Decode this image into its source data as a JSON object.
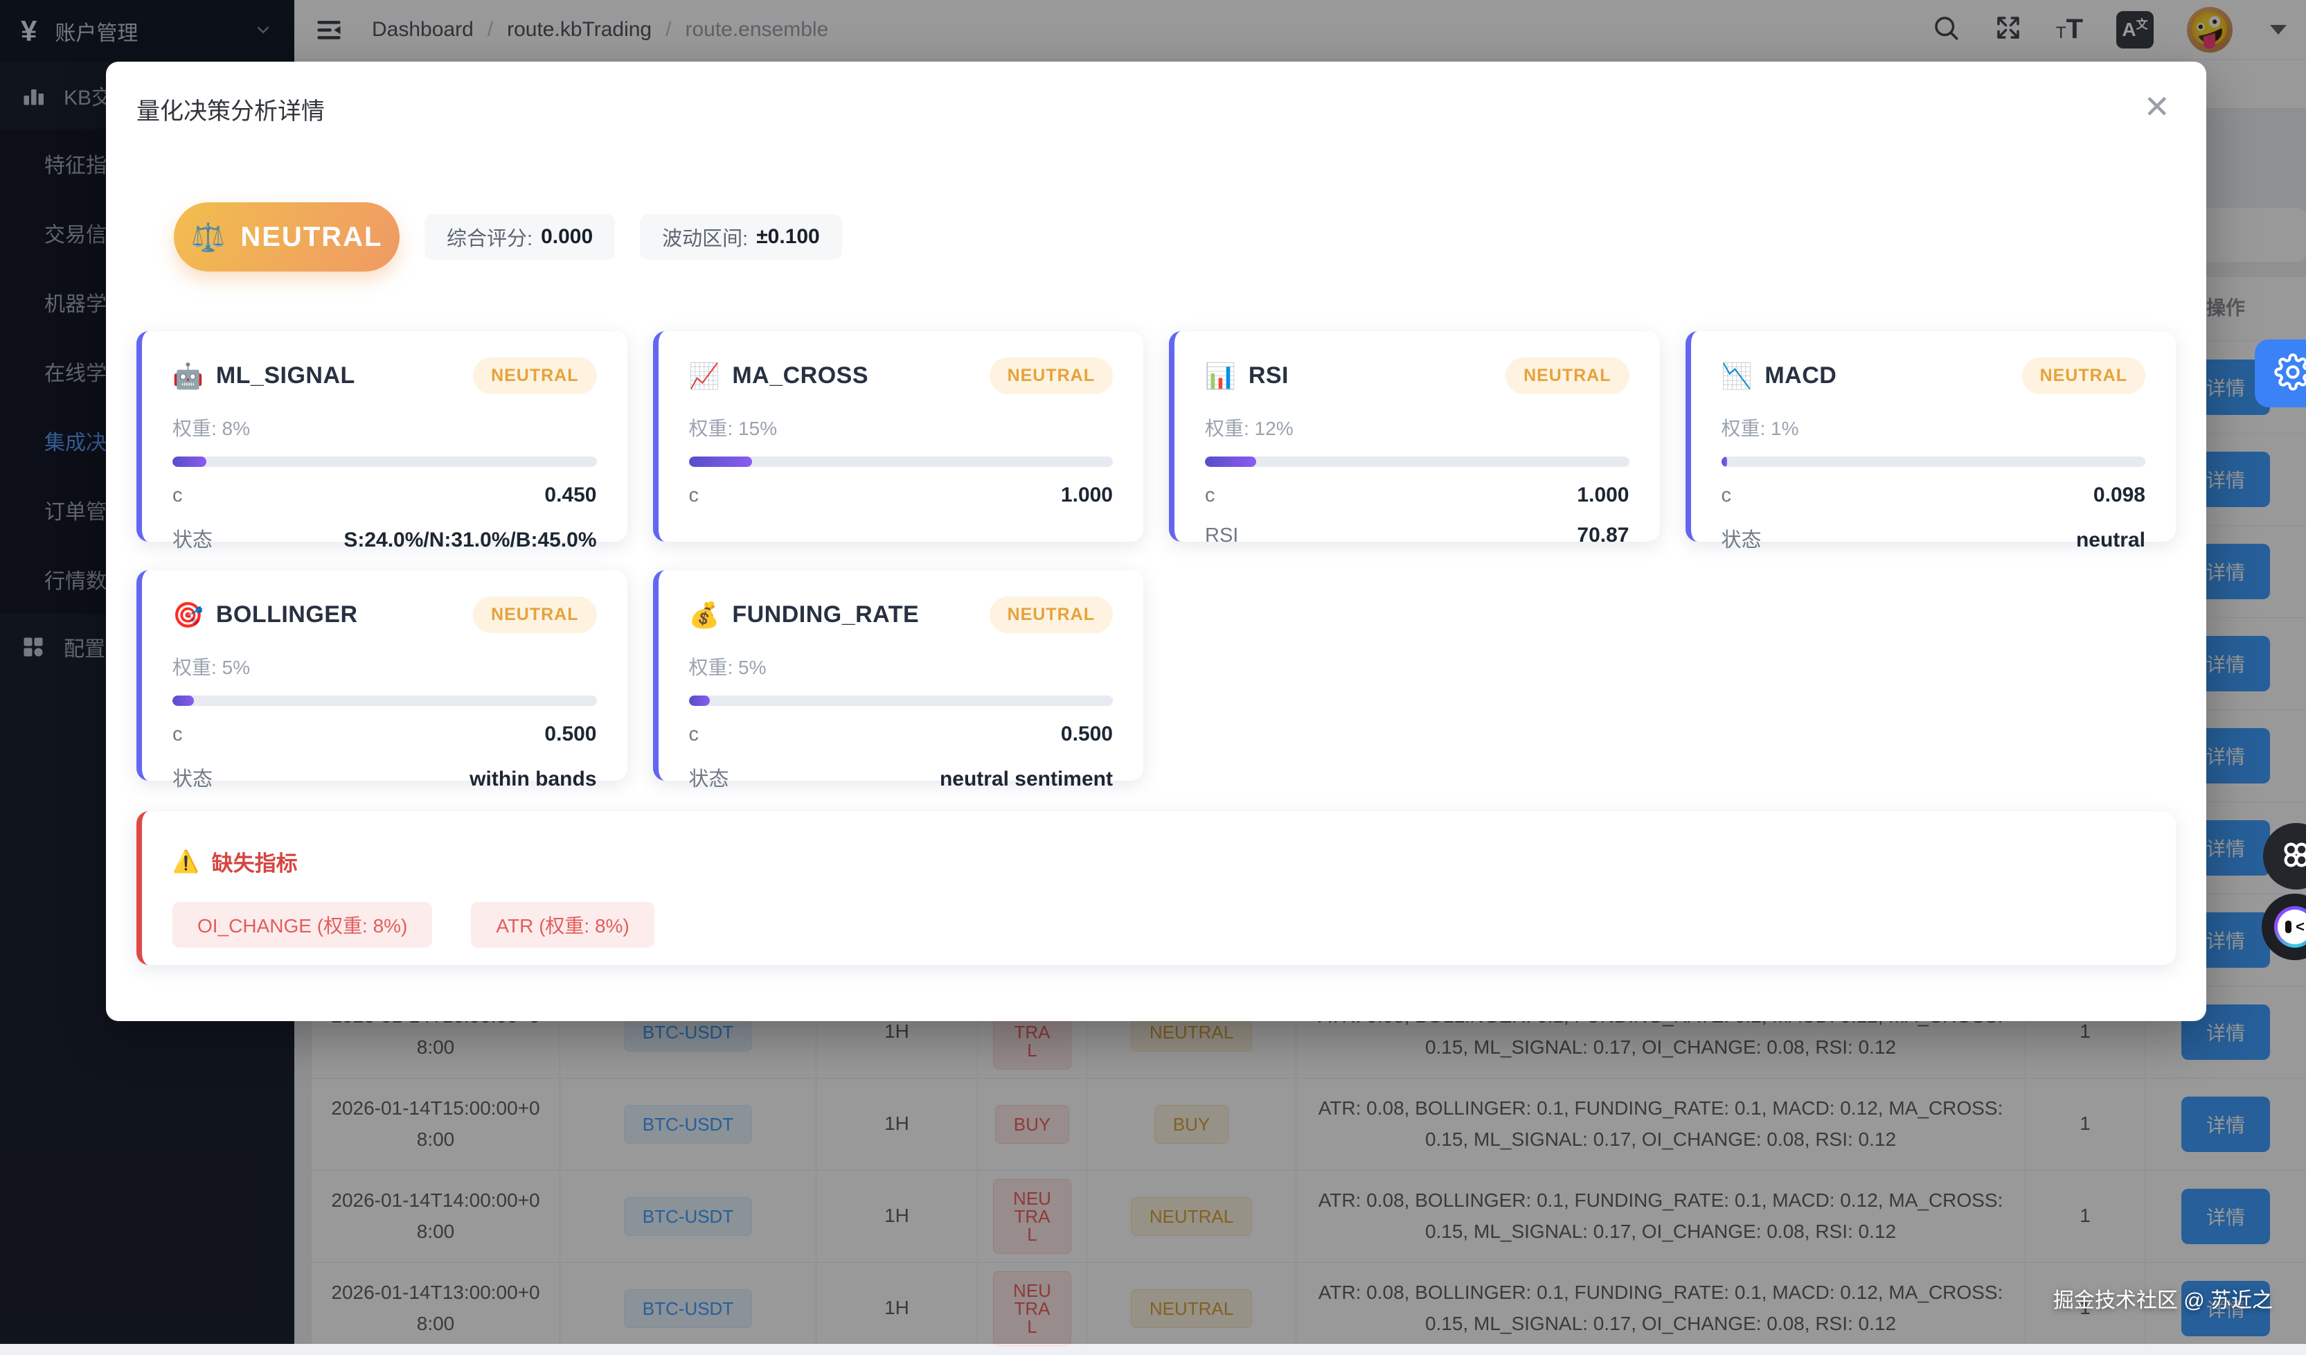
{
  "sidebar": {
    "logo": {
      "icon": "¥",
      "title": "账户管理"
    },
    "parent_top": {
      "icon": "bar-chart",
      "label": "KB交"
    },
    "items": [
      {
        "label": "特征指",
        "active": false
      },
      {
        "label": "交易信",
        "active": false
      },
      {
        "label": "机器学",
        "active": false
      },
      {
        "label": "在线学",
        "active": false
      },
      {
        "label": "集成决",
        "active": true
      },
      {
        "label": "订单管",
        "active": false
      },
      {
        "label": "行情数",
        "active": false
      }
    ],
    "parent_bottom": {
      "icon": "grid",
      "label": "配置管"
    }
  },
  "topbar": {
    "breadcrumb": [
      "Dashboard",
      "route.kbTrading",
      "route.ensemble"
    ],
    "separator": "/",
    "icons": [
      "search",
      "fullscreen",
      "font-size",
      "translate"
    ],
    "font_icon_small": "T",
    "font_icon_big": "T",
    "translate_a": "A",
    "translate_wen": "文",
    "avatar_emoji": "🤪"
  },
  "modal": {
    "title": "量化决策分析详情",
    "close_label": "✕",
    "summary": {
      "signal_icon": "⚖️",
      "signal": "NEUTRAL",
      "score_label": "综合评分:",
      "score_value": "0.000",
      "range_label": "波动区间:",
      "range_value": "±0.100"
    },
    "indicators": [
      {
        "icon": "🤖",
        "name": "ML_SIGNAL",
        "badge": "NEUTRAL",
        "weight_label": "权重: 8%",
        "weight_pct": 8,
        "rows": [
          {
            "k": "c",
            "v": "0.450"
          },
          {
            "k": "状态",
            "v": "S:24.0%/N:31.0%/B:45.0%"
          }
        ]
      },
      {
        "icon": "📈",
        "name": "MA_CROSS",
        "badge": "NEUTRAL",
        "weight_label": "权重: 15%",
        "weight_pct": 15,
        "rows": [
          {
            "k": "c",
            "v": "1.000"
          }
        ]
      },
      {
        "icon": "📊",
        "name": "RSI",
        "badge": "NEUTRAL",
        "weight_label": "权重: 12%",
        "weight_pct": 12,
        "rows": [
          {
            "k": "c",
            "v": "1.000"
          },
          {
            "k": "RSI",
            "v": "70.87"
          }
        ]
      },
      {
        "icon": "📉",
        "name": "MACD",
        "badge": "NEUTRAL",
        "weight_label": "权重: 1%",
        "weight_pct": 1,
        "rows": [
          {
            "k": "c",
            "v": "0.098"
          },
          {
            "k": "状态",
            "v": "neutral"
          }
        ]
      },
      {
        "icon": "🎯",
        "name": "BOLLINGER",
        "badge": "NEUTRAL",
        "weight_label": "权重: 5%",
        "weight_pct": 5,
        "rows": [
          {
            "k": "c",
            "v": "0.500"
          },
          {
            "k": "状态",
            "v": "within bands"
          }
        ]
      },
      {
        "icon": "💰",
        "name": "FUNDING_RATE",
        "badge": "NEUTRAL",
        "weight_label": "权重: 5%",
        "weight_pct": 5,
        "rows": [
          {
            "k": "c",
            "v": "0.500"
          },
          {
            "k": "状态",
            "v": "neutral sentiment"
          }
        ]
      }
    ],
    "missing": {
      "icon": "⚠️",
      "title": "缺失指标",
      "tags": [
        "OI_CHANGE (权重: 8%)",
        "ATR (权重: 8%)"
      ]
    },
    "colors": {
      "card_accent": "#6366f1",
      "badge_text": "#e6a23c",
      "missing_accent": "#e04848",
      "banner_gradient_start": "#f2bd4e",
      "banner_gradient_end": "#ef9a64"
    }
  },
  "background_table": {
    "action_header": "操作",
    "detail_label": "详情",
    "hidden_row_count": 7,
    "rows": [
      {
        "time": "2026-01-14T16:00:00+08:00",
        "pair": "BTC-USDT",
        "period": "1H",
        "signal": "NEUTRAL",
        "ensemble": "NEUTRAL",
        "weights": "ATR: 0.08, BOLLINGER: 0.1, FUNDING_RATE: 0.1, MACD: 0.12, MA_CROSS: 0.15, ML_SIGNAL: 0.17, OI_CHANGE: 0.08, RSI: 0.12",
        "count": "1"
      },
      {
        "time": "2026-01-14T15:00:00+08:00",
        "pair": "BTC-USDT",
        "period": "1H",
        "signal": "BUY",
        "ensemble": "BUY",
        "weights": "ATR: 0.08, BOLLINGER: 0.1, FUNDING_RATE: 0.1, MACD: 0.12, MA_CROSS: 0.15, ML_SIGNAL: 0.17, OI_CHANGE: 0.08, RSI: 0.12",
        "count": "1"
      },
      {
        "time": "2026-01-14T14:00:00+08:00",
        "pair": "BTC-USDT",
        "period": "1H",
        "signal": "NEUTRAL",
        "ensemble": "NEUTRAL",
        "weights": "ATR: 0.08, BOLLINGER: 0.1, FUNDING_RATE: 0.1, MACD: 0.12, MA_CROSS: 0.15, ML_SIGNAL: 0.17, OI_CHANGE: 0.08, RSI: 0.12",
        "count": "1"
      },
      {
        "time": "2026-01-14T13:00:00+08:00",
        "pair": "BTC-USDT",
        "period": "1H",
        "signal": "NEUTRAL",
        "ensemble": "NEUTRAL",
        "weights": "ATR: 0.08, BOLLINGER: 0.1, FUNDING_RATE: 0.1, MACD: 0.12, MA_CROSS: 0.15, ML_SIGNAL: 0.17, OI_CHANGE: 0.08, RSI: 0.12",
        "count": "1"
      }
    ]
  },
  "floating": {
    "gear_icon": "settings-gear",
    "clover_icon": "apps-clover",
    "robot_icon": "assistant-robot",
    "gear_color": "#3b82f6"
  },
  "watermark": "掘金技术社区 @ 苏近之"
}
